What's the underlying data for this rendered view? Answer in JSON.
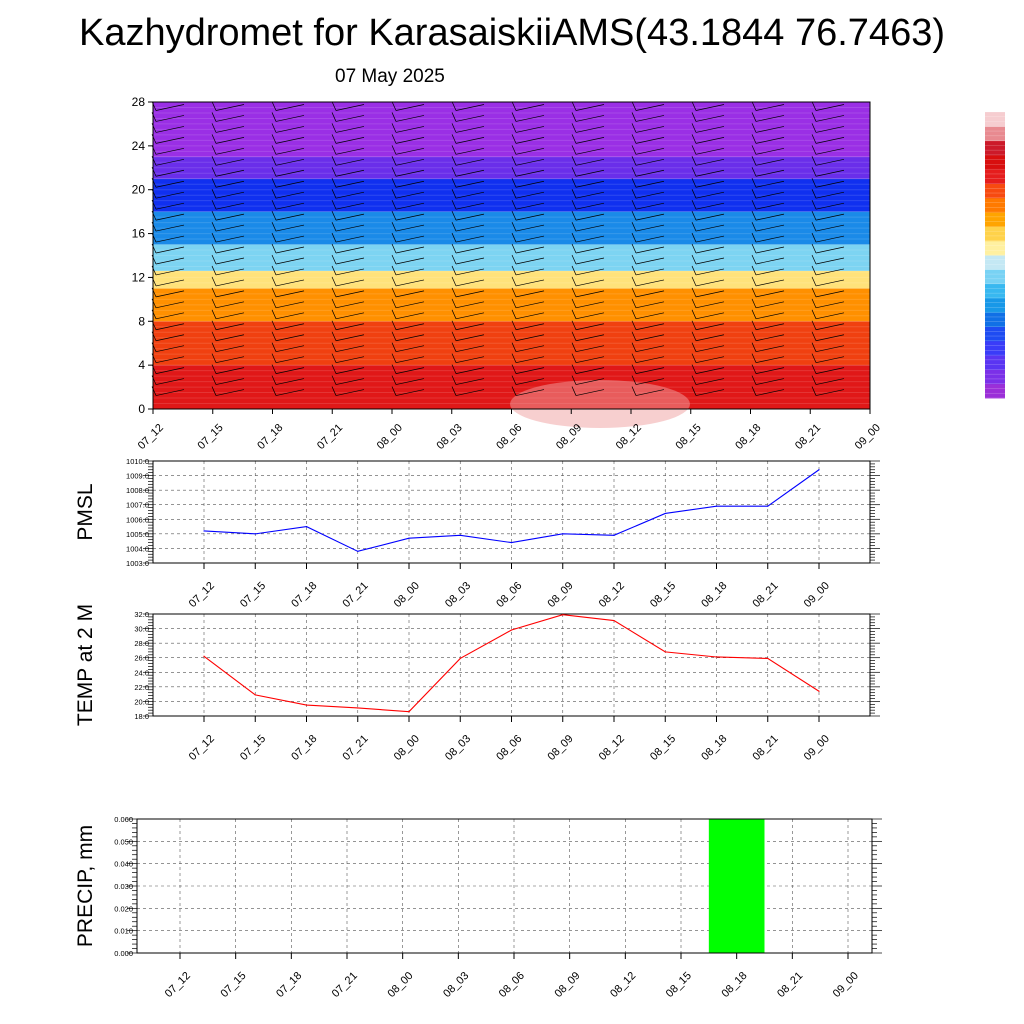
{
  "title": "Kazhydromet for KarasaiskiiAMS(43.1844 76.7463)",
  "date": "07 May 2025",
  "colorbar": [
    "#9b2fd8",
    "#7b30e8",
    "#5a35f2",
    "#3a3cf8",
    "#1e4cf2",
    "#1070e6",
    "#1898e8",
    "#38b8f0",
    "#78d2f4",
    "#c4e8f4",
    "#fff0a0",
    "#ffd24a",
    "#ffa400",
    "#ff7a00",
    "#f74a10",
    "#e51d1d",
    "#d80f0f",
    "#cc1a2a",
    "#e88a90",
    "#f6cdd0"
  ],
  "chart_data": [
    {
      "type": "heatmap",
      "name": "vertical cross-section",
      "x": [
        "07_12",
        "07_15",
        "07_18",
        "07_21",
        "08_00",
        "08_03",
        "08_06",
        "08_09",
        "08_12",
        "08_15",
        "08_18",
        "08_21",
        "09_00"
      ],
      "yticks": [
        0,
        4,
        8,
        12,
        16,
        20,
        24,
        28
      ],
      "ylim": [
        0,
        28
      ],
      "bands": [
        {
          "from": 0,
          "to": 4,
          "color": "#e01818"
        },
        {
          "from": 4,
          "to": 8,
          "color": "#f04010"
        },
        {
          "from": 8,
          "to": 11,
          "color": "#ff9000"
        },
        {
          "from": 11,
          "to": 12.6,
          "color": "#ffe27a"
        },
        {
          "from": 12.6,
          "to": 15,
          "color": "#7dd4f2"
        },
        {
          "from": 15,
          "to": 18,
          "color": "#1a8ae8"
        },
        {
          "from": 18,
          "to": 21,
          "color": "#1030ef"
        },
        {
          "from": 21,
          "to": 23,
          "color": "#6a2eea"
        },
        {
          "from": 23,
          "to": 28,
          "color": "#9a2fe5"
        }
      ]
    },
    {
      "type": "line",
      "ylabel": "PMSL",
      "x": [
        "07_12",
        "07_15",
        "07_18",
        "07_21",
        "08_00",
        "08_03",
        "08_06",
        "08_09",
        "08_12",
        "08_15",
        "08_18",
        "08_21",
        "09_00"
      ],
      "series": [
        {
          "values": [
            1005.2,
            1005.0,
            1005.5,
            1003.8,
            1004.7,
            1004.9,
            1004.4,
            1005.0,
            1004.9,
            1006.4,
            1006.9,
            1006.9,
            1009.4
          ],
          "color": "#0000ff"
        }
      ],
      "ylim": [
        1003.0,
        1010.0
      ],
      "yticks": [
        "1003.0",
        "1004.0",
        "1005.0",
        "1006.0",
        "1007.0",
        "1008.0",
        "1009.0",
        "1010.0"
      ],
      "grid": true
    },
    {
      "type": "line",
      "ylabel": "TEMP at 2 M",
      "x": [
        "07_12",
        "07_15",
        "07_18",
        "07_21",
        "08_00",
        "08_03",
        "08_06",
        "08_09",
        "08_12",
        "08_15",
        "08_18",
        "08_21",
        "09_00"
      ],
      "series": [
        {
          "values": [
            26.2,
            20.9,
            19.5,
            19.1,
            18.6,
            25.9,
            29.8,
            31.9,
            31.1,
            26.8,
            26.1,
            25.9,
            21.4
          ],
          "color": "#ff0000"
        }
      ],
      "ylim": [
        18.0,
        32.0
      ],
      "yticks": [
        "18.0",
        "20.0",
        "22.0",
        "24.0",
        "26.0",
        "28.0",
        "30.0",
        "32.0"
      ],
      "grid": true
    },
    {
      "type": "bar",
      "ylabel": "PRECIP, mm",
      "x": [
        "07_12",
        "07_15",
        "07_18",
        "07_21",
        "08_00",
        "08_03",
        "08_06",
        "08_09",
        "08_12",
        "08_15",
        "08_18",
        "08_21",
        "09_00"
      ],
      "series": [
        {
          "values": [
            0,
            0,
            0,
            0,
            0,
            0,
            0,
            0,
            0,
            0,
            0.06,
            0,
            0
          ],
          "color": "#00ff00"
        }
      ],
      "ylim": [
        0,
        0.06
      ],
      "yticks": [
        "0.000",
        "0.010",
        "0.020",
        "0.030",
        "0.040",
        "0.050",
        "0.060"
      ],
      "grid": true
    }
  ]
}
